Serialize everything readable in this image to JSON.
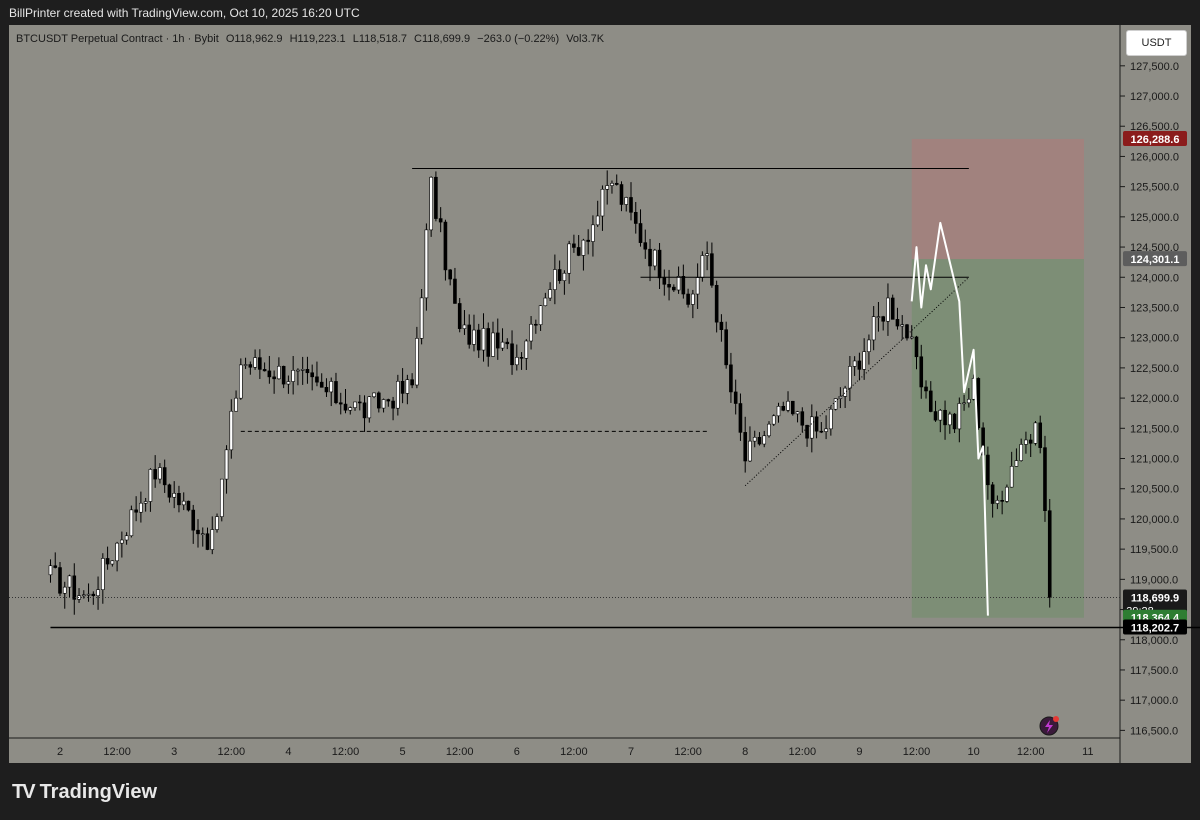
{
  "header": {
    "credit": "BillPrinter created with TradingView.com, Oct 10, 2025 16:20 UTC"
  },
  "symbol": {
    "name": "BTCUSDT Perpetual Contract · 1h · Bybit",
    "open": "O118,962.9",
    "high": "H119,223.1",
    "low": "L118,518.7",
    "close": "C118,699.9",
    "change": "−263.0 (−0.22%)",
    "volume": "Vol3.7K"
  },
  "currency_button": "USDT",
  "brand": {
    "name": "TradingView",
    "logo": "TV"
  },
  "colors": {
    "background": "#8e8d86",
    "bull": "#ffffff",
    "bear": "#000000",
    "stop_zone": "#b07a79",
    "target_zone": "#6f8f6a",
    "price_up": "#2e7d32",
    "stop_label": "#8b1c1c"
  },
  "chart_data": {
    "type": "candlestick",
    "title": "BTCUSDT Perpetual Contract · 1h · Bybit",
    "ylim": [
      116200,
      128250
    ],
    "y_ticks": [
      "116,500.0",
      "117,000.0",
      "117,500.0",
      "118,000.0",
      "118,500.0",
      "119,000.0",
      "119,500.0",
      "120,000.0",
      "120,500.0",
      "121,000.0",
      "121,500.0",
      "122,000.0",
      "122,500.0",
      "123,000.0",
      "123,500.0",
      "124,000.0",
      "124,500.0",
      "125,000.0",
      "125,500.0",
      "126,000.0",
      "126,500.0",
      "127,000.0",
      "127,500.0"
    ],
    "x_ticks": [
      "2",
      "12:00",
      "3",
      "12:00",
      "4",
      "12:00",
      "5",
      "12:00",
      "6",
      "12:00",
      "7",
      "12:00",
      "8",
      "12:00",
      "9",
      "12:00",
      "10",
      "12:00",
      "11"
    ],
    "price_labels": [
      {
        "price": 126288.6,
        "text": "126,288.6",
        "role": "stop"
      },
      {
        "price": 124301.1,
        "text": "124,301.1",
        "role": "entry"
      },
      {
        "price": 118699.9,
        "text": "118,699.9",
        "role": "last",
        "countdown": "39:28"
      },
      {
        "price": 118364.4,
        "text": "118,364.4",
        "role": "target"
      },
      {
        "price": 118202.7,
        "text": "118,202.7",
        "role": "level"
      }
    ],
    "horizontal_levels": [
      {
        "price": 125800,
        "style": "solid",
        "from": "Oct 5 02:00",
        "to": "Oct 9 23:00"
      },
      {
        "price": 124000,
        "style": "solid",
        "from": "Oct 7 02:00",
        "to": "Oct 9 23:00"
      },
      {
        "price": 121450,
        "style": "dashed",
        "from": "Oct 3 14:00",
        "to": "Oct 7 16:00"
      },
      {
        "price": 118202.7,
        "style": "solid",
        "from": "Oct 1 22:00",
        "to": "chart end"
      }
    ],
    "trendline": {
      "from": [
        120550
      ],
      "to": [
        124000
      ],
      "style": "dotted"
    },
    "position": {
      "type": "short",
      "entry": 124301.1,
      "stop": 126288.6,
      "target": 118364.4
    },
    "key_points": [
      [
        119050,
        "Oct 1 22:00"
      ],
      [
        118700,
        "Oct 2 06:00"
      ],
      [
        120800,
        "Oct 2 20:00"
      ],
      [
        119600,
        "Oct 3 08:00"
      ],
      [
        122600,
        "Oct 3 14:00"
      ],
      [
        122400,
        "Oct 4 00:00"
      ],
      [
        121800,
        "Oct 4 16:00"
      ],
      [
        122200,
        "Oct 5 02:00"
      ],
      [
        125500,
        "Oct 5 06:00"
      ],
      [
        123100,
        "Oct 5 12:00"
      ],
      [
        122700,
        "Oct 6 00:00"
      ],
      [
        123800,
        "Oct 6 06:00"
      ],
      [
        124900,
        "Oct 6 16:00"
      ],
      [
        125600,
        "Oct 6 20:00"
      ],
      [
        124400,
        "Oct 7 04:00"
      ],
      [
        123600,
        "Oct 7 12:00"
      ],
      [
        124400,
        "Oct 7 16:00"
      ],
      [
        122500,
        "Oct 7 20:00"
      ],
      [
        121000,
        "Oct 8 00:00"
      ],
      [
        121800,
        "Oct 8 08:00"
      ],
      [
        121400,
        "Oct 8 16:00"
      ],
      [
        122700,
        "Oct 9 00:00"
      ],
      [
        123600,
        "Oct 9 06:00"
      ],
      [
        123100,
        "Oct 9 10:00"
      ],
      [
        121900,
        "Oct 9 14:00"
      ],
      [
        121600,
        "Oct 9 20:00"
      ],
      [
        122200,
        "Oct 10 00:00"
      ],
      [
        120100,
        "Oct 10 04:00"
      ],
      [
        121300,
        "Oct 10 10:00"
      ],
      [
        121400,
        "Oct 10 14:00"
      ],
      [
        118700,
        "Oct 10 16:00"
      ]
    ],
    "projection_path": [
      [
        123600,
        "Oct 9 11:00"
      ],
      [
        124500,
        "Oct 9 12:00"
      ],
      [
        123500,
        "Oct 9 13:00"
      ],
      [
        124200,
        "Oct 9 14:00"
      ],
      [
        123800,
        "Oct 9 15:00"
      ],
      [
        124900,
        "Oct 9 17:00"
      ],
      [
        123600,
        "Oct 9 21:00"
      ],
      [
        122100,
        "Oct 9 22:00"
      ],
      [
        122800,
        "Oct 10 00:00"
      ],
      [
        121000,
        "Oct 10 01:00"
      ],
      [
        121200,
        "Oct 10 02:00"
      ],
      [
        118400,
        "Oct 10 03:00"
      ]
    ]
  }
}
